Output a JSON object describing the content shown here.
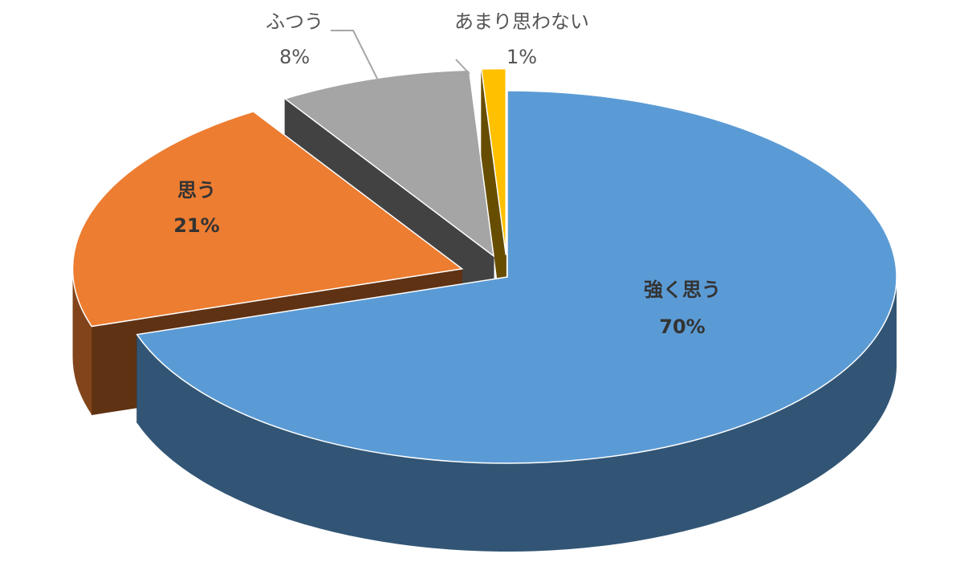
{
  "chart_data": {
    "type": "pie",
    "categories": [
      "強く思う",
      "思う",
      "ふつう",
      "あまり思わない"
    ],
    "values": [
      70,
      21,
      8,
      1
    ],
    "value_labels": [
      "70%",
      "21%",
      "8%",
      "1%"
    ],
    "colors": [
      "#5b9bd5",
      "#ed7d31",
      "#a5a5a5",
      "#ffc000"
    ]
  }
}
